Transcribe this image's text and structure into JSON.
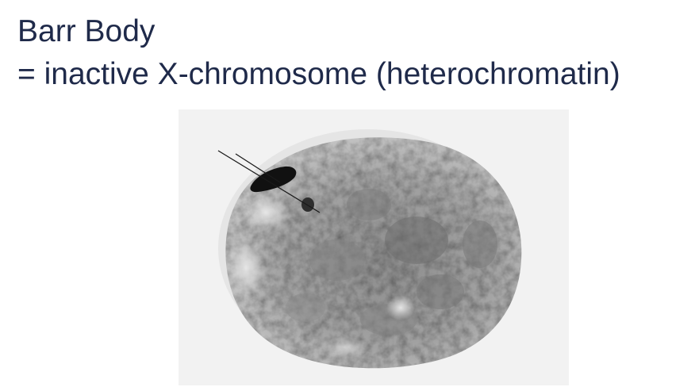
{
  "slide": {
    "title": "Barr Body",
    "subtitle": "= inactive X-chromosome (heterochromatin)"
  },
  "micrograph": {
    "subject": "cell-nucleus",
    "highlight": "barr-body",
    "pointer": "arrow-lines"
  },
  "colors": {
    "title_text": "#1f2a4a",
    "background": "#ffffff",
    "image_background": "#f2f2f2",
    "nucleus_fill": "#9a9a9a",
    "barr_body": "#111111"
  }
}
